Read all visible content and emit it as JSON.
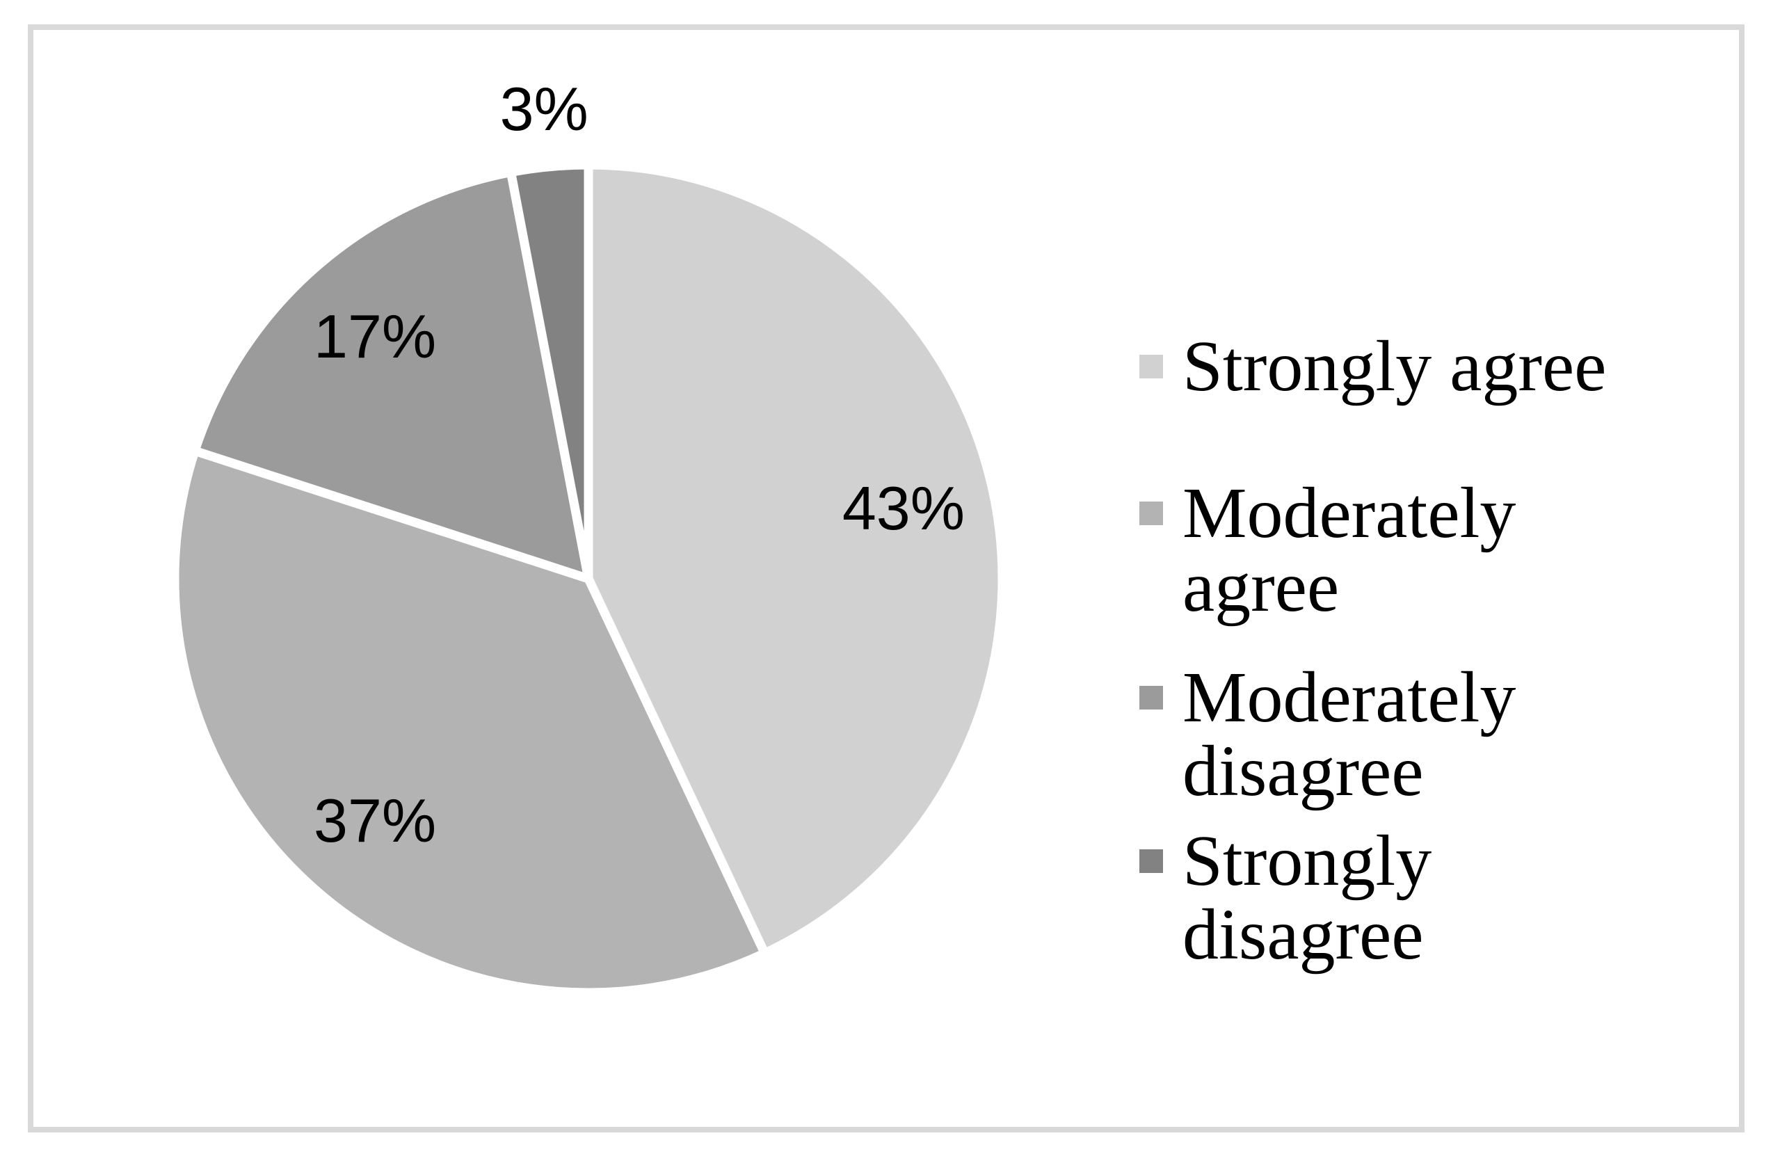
{
  "frame": {
    "border_color": "#d9d9d9",
    "background_color": "#ffffff"
  },
  "chart_data": {
    "type": "pie",
    "title": "",
    "categories": [
      "Strongly agree",
      "Moderately agree",
      "Moderately disagree",
      "Strongly disagree"
    ],
    "values": [
      43,
      37,
      17,
      3
    ],
    "labels": [
      "43%",
      "37%",
      "17%",
      "3%"
    ],
    "colors": [
      "#d1d1d1",
      "#b3b3b3",
      "#9b9b9b",
      "#828282"
    ],
    "label_color": "#000000",
    "separator_color": "#ffffff",
    "start_angle_deg": 0,
    "direction": "clockwise",
    "legend_position": "right",
    "legend": [
      {
        "label": "Strongly agree",
        "lines": [
          "Strongly agree"
        ],
        "color": "#d1d1d1"
      },
      {
        "label": "Moderately agree",
        "lines": [
          "Moderately",
          "agree"
        ],
        "color": "#b3b3b3"
      },
      {
        "label": "Moderately disagree",
        "lines": [
          "Moderately",
          "disagree"
        ],
        "color": "#9b9b9b"
      },
      {
        "label": "Strongly disagree",
        "lines": [
          "Strongly",
          "disagree"
        ],
        "color": "#828282"
      }
    ]
  }
}
